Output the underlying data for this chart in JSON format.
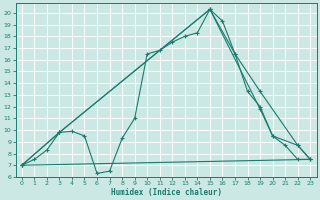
{
  "xlabel": "Humidex (Indice chaleur)",
  "bg_color": "#cce8e4",
  "grid_color": "#ffffff",
  "line_color": "#1a7a6e",
  "xlim": [
    -0.5,
    23.5
  ],
  "ylim": [
    6.0,
    20.8
  ],
  "yticks": [
    6,
    7,
    8,
    9,
    10,
    11,
    12,
    13,
    14,
    15,
    16,
    17,
    18,
    19,
    20
  ],
  "xticks": [
    0,
    1,
    2,
    3,
    4,
    5,
    6,
    7,
    8,
    9,
    10,
    11,
    12,
    13,
    14,
    15,
    16,
    17,
    18,
    19,
    20,
    21,
    22,
    23
  ],
  "line1_x": [
    0,
    1,
    2,
    3,
    4,
    5,
    6,
    7,
    8,
    9,
    10,
    11,
    12,
    13,
    14,
    15,
    16,
    17,
    18,
    19,
    20,
    21,
    22,
    23
  ],
  "line1_y": [
    7.0,
    7.5,
    8.3,
    9.8,
    9.9,
    9.5,
    6.3,
    6.5,
    9.3,
    11.0,
    16.5,
    16.8,
    17.5,
    18.0,
    18.3,
    20.3,
    19.3,
    16.5,
    13.3,
    12.0,
    9.5,
    8.7,
    7.5,
    7.5
  ],
  "line2_x": [
    0,
    3,
    15,
    17,
    19,
    22,
    23
  ],
  "line2_y": [
    7.0,
    9.8,
    20.3,
    16.5,
    13.3,
    8.7,
    7.5
  ],
  "line3_x": [
    0,
    3,
    15,
    19,
    20,
    22,
    23
  ],
  "line3_y": [
    7.0,
    9.8,
    20.3,
    11.8,
    9.5,
    8.7,
    7.5
  ],
  "line4_x": [
    0,
    23
  ],
  "line4_y": [
    7.0,
    7.5
  ]
}
